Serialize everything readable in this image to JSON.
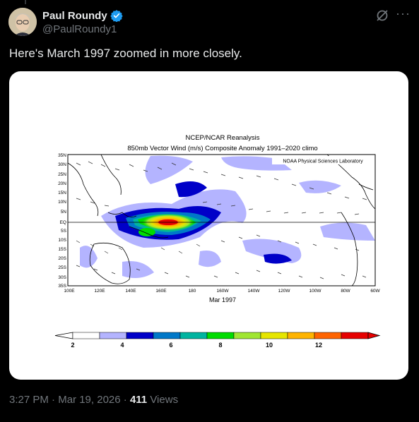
{
  "author": {
    "name": "Paul Roundy",
    "handle": "@PaulRoundy1"
  },
  "post": {
    "text": "Here's March 1997 zoomed in more closely."
  },
  "figure": {
    "title_line1": "NCEP/NCAR Reanalysis",
    "title_line2": "850mb Vector Wind (m/s) Composite Anomaly 1991–2020 climo",
    "credit": "NOAA Physical Sciences Laboratory",
    "month_label": "Mar 1997",
    "lat_labels": [
      "35N",
      "30N",
      "25N",
      "20N",
      "15N",
      "10N",
      "5N",
      "EQ",
      "5S",
      "10S",
      "15S",
      "20S",
      "25S",
      "30S",
      "35S"
    ],
    "lon_labels": [
      "100E",
      "120E",
      "140E",
      "160E",
      "180",
      "160W",
      "140W",
      "120W",
      "100W",
      "80W",
      "60W"
    ],
    "colorbar_labels": [
      "2",
      "4",
      "6",
      "8",
      "10",
      "12"
    ],
    "colorbar_colors": [
      "#ffffff",
      "#b4b4ff",
      "#0000c8",
      "#0078c8",
      "#00b4a0",
      "#00dc00",
      "#a0e632",
      "#e6e600",
      "#ffb400",
      "#ff6400",
      "#e60000"
    ]
  },
  "meta": {
    "time": "3:27 PM",
    "sep1": " · ",
    "date": "Mar 19, 2026",
    "sep2": " · ",
    "views_count": "411",
    "views_label": " Views"
  }
}
